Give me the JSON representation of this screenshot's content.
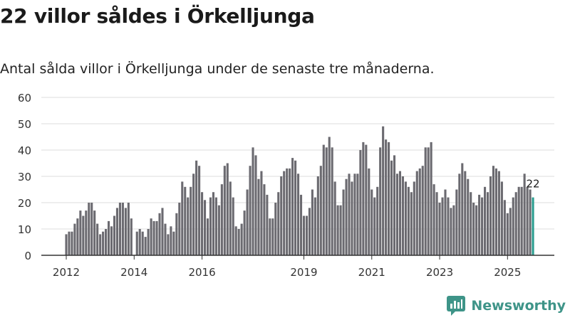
{
  "title": "22 villor såldes i Örkelljunga",
  "subtitle": "Antal sålda villor i Örkelljunga under de senaste tre månaderna.",
  "brand": "Newsworthy",
  "colors": {
    "bar": "#6b6a70",
    "highlight": "#2a9d8f",
    "grid": "#dddddd",
    "brand": "#3e9488"
  },
  "chart_data": {
    "type": "bar",
    "title": "22 villor såldes i Örkelljunga",
    "xlabel": "",
    "ylabel": "",
    "ylim": [
      0,
      60
    ],
    "yticks": [
      0,
      10,
      20,
      30,
      40,
      50,
      60
    ],
    "xtick_labels": [
      {
        "label": "2012",
        "index": 0
      },
      {
        "label": "2014",
        "index": 24
      },
      {
        "label": "2016",
        "index": 48
      },
      {
        "label": "2019",
        "index": 84
      },
      {
        "label": "2021",
        "index": 108
      },
      {
        "label": "2023",
        "index": 132
      },
      {
        "label": "2025",
        "index": 156
      }
    ],
    "highlight_label": "22",
    "values": [
      8,
      9,
      9,
      12,
      14,
      17,
      15,
      17,
      20,
      20,
      17,
      12,
      8,
      9,
      10,
      13,
      11,
      15,
      18,
      20,
      20,
      18,
      20,
      14,
      null,
      9,
      10,
      9,
      7,
      10,
      14,
      13,
      13,
      16,
      18,
      12,
      8,
      11,
      9,
      16,
      20,
      28,
      26,
      22,
      26,
      31,
      36,
      34,
      24,
      21,
      14,
      22,
      24,
      22,
      19,
      27,
      34,
      35,
      28,
      22,
      11,
      10,
      12,
      17,
      25,
      34,
      41,
      38,
      29,
      32,
      27,
      23,
      14,
      14,
      20,
      24,
      30,
      32,
      33,
      33,
      37,
      36,
      31,
      23,
      15,
      15,
      18,
      25,
      22,
      30,
      34,
      42,
      41,
      45,
      41,
      28,
      19,
      19,
      25,
      29,
      31,
      28,
      31,
      31,
      40,
      43,
      42,
      33,
      25,
      22,
      26,
      41,
      49,
      44,
      43,
      36,
      38,
      31,
      32,
      30,
      28,
      26,
      24,
      28,
      32,
      33,
      34,
      41,
      41,
      43,
      27,
      24,
      20,
      22,
      25,
      22,
      18,
      19,
      25,
      31,
      35,
      32,
      29,
      24,
      20,
      19,
      23,
      22,
      26,
      24,
      30,
      34,
      33,
      32,
      28,
      21,
      16,
      18,
      22,
      24,
      26,
      26,
      31,
      26,
      25,
      22
    ]
  }
}
